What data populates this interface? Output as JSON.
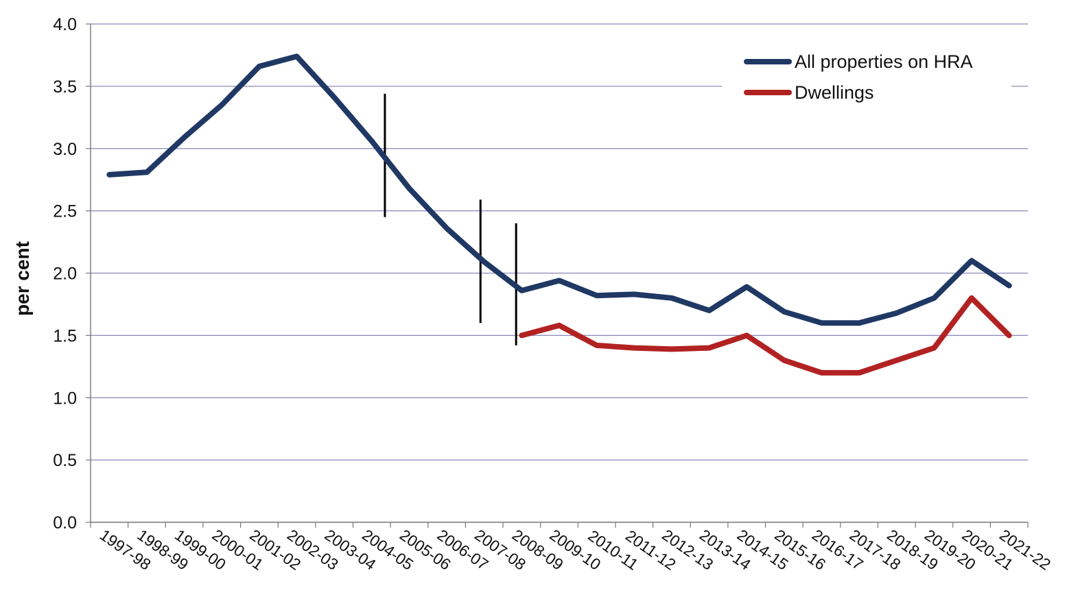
{
  "chart_data": {
    "type": "line",
    "title": "",
    "xlabel": "",
    "ylabel": "per cent",
    "ylim": [
      0,
      4.0
    ],
    "yticks": [
      "0.0",
      "0.5",
      "1.0",
      "1.5",
      "2.0",
      "2.5",
      "3.0",
      "3.5",
      "4.0"
    ],
    "categories": [
      "1997-98",
      "1998-99",
      "1999-00",
      "2000-01",
      "2001-02",
      "2002-03",
      "2003-04",
      "2004-05",
      "2005-06",
      "2006-07",
      "2007-08",
      "2008-09",
      "2009-10",
      "2010-11",
      "2011-12",
      "2012-13",
      "2013-14",
      "2014-15",
      "2015-16",
      "2016-17",
      "2017-18",
      "2018-19",
      "2019-20",
      "2020-21",
      "2021-22"
    ],
    "series": [
      {
        "name": "All properties on HRA",
        "color": "#1f3864",
        "values": [
          2.79,
          2.81,
          3.09,
          3.35,
          3.66,
          3.74,
          3.41,
          3.06,
          2.68,
          2.36,
          2.09,
          1.86,
          1.94,
          1.82,
          1.83,
          1.8,
          1.7,
          1.89,
          1.69,
          1.6,
          1.6,
          1.68,
          1.8,
          2.1,
          1.9
        ]
      },
      {
        "name": "Dwellings",
        "color": "#b22222",
        "values": [
          null,
          null,
          null,
          null,
          null,
          null,
          null,
          null,
          null,
          null,
          null,
          1.5,
          1.58,
          1.42,
          1.4,
          1.39,
          1.4,
          1.5,
          1.3,
          1.2,
          1.2,
          1.3,
          1.4,
          1.8,
          1.5
        ]
      }
    ],
    "break_markers": [
      {
        "x": 7.35,
        "ymin": 2.45,
        "ymax": 3.44
      },
      {
        "x": 9.9,
        "ymin": 1.6,
        "ymax": 2.59
      },
      {
        "x": 10.85,
        "ymin": 1.42,
        "ymax": 2.4
      }
    ],
    "grid": true,
    "legend_position": "top-right"
  }
}
